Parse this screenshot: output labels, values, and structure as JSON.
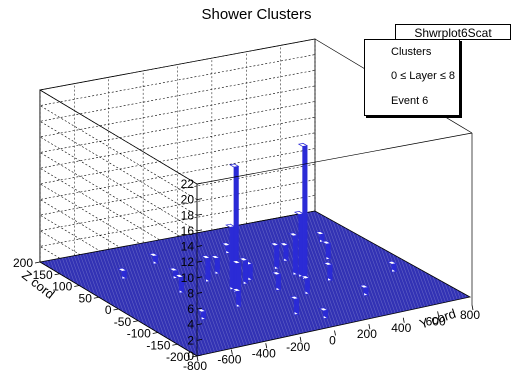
{
  "chart_data": {
    "type": "lego3d",
    "title": "Shower Clusters",
    "stat_box_name": "Shwrplot6Scat",
    "legend": [
      "Clusters",
      "0 ≤ Layer ≤ 8",
      "Event 6"
    ],
    "xlabel": "Y cord",
    "ylabel": "Z cord",
    "zaxis": {
      "ticks": [
        0,
        2,
        4,
        6,
        8,
        10,
        12,
        14,
        16,
        18,
        20,
        22
      ],
      "range": [
        0,
        22
      ]
    },
    "xaxis": {
      "ticks": [
        -800,
        -600,
        -400,
        -200,
        0,
        200,
        400,
        600,
        800
      ],
      "range": [
        -800,
        800
      ]
    },
    "yaxis": {
      "ticks": [
        -200,
        -150,
        -100,
        -50,
        0,
        50,
        100,
        150,
        200
      ],
      "range": [
        -200,
        200
      ]
    },
    "colors": {
      "bar_top": "#ffffff",
      "bar_side": "#2b2bd6",
      "floor": "#3232b4",
      "axis": "#000000",
      "grid": "#000000"
    },
    "bins": [
      {
        "x": -150,
        "y": -10,
        "z": 16
      },
      {
        "x": -150,
        "y": 0,
        "z": 8
      },
      {
        "x": -160,
        "y": -20,
        "z": 4
      },
      {
        "x": 250,
        "y": -10,
        "z": 17
      },
      {
        "x": 250,
        "y": 0,
        "z": 8
      },
      {
        "x": 240,
        "y": 10,
        "z": 5
      },
      {
        "x": -200,
        "y": 40,
        "z": 3
      },
      {
        "x": -100,
        "y": 60,
        "z": 2
      },
      {
        "x": -250,
        "y": -60,
        "z": 2
      },
      {
        "x": 200,
        "y": 40,
        "z": 3
      },
      {
        "x": 300,
        "y": 60,
        "z": 2
      },
      {
        "x": 150,
        "y": -60,
        "z": 2
      },
      {
        "x": -400,
        "y": 20,
        "z": 2
      },
      {
        "x": -500,
        "y": -80,
        "z": 1
      },
      {
        "x": -550,
        "y": 100,
        "z": 1
      },
      {
        "x": 500,
        "y": 40,
        "z": 2
      },
      {
        "x": 600,
        "y": 100,
        "z": 1
      },
      {
        "x": -50,
        "y": -120,
        "z": 2
      },
      {
        "x": 50,
        "y": -150,
        "z": 1
      },
      {
        "x": 100,
        "y": 120,
        "z": 1
      },
      {
        "x": -300,
        "y": 130,
        "z": 1
      },
      {
        "x": 400,
        "y": -100,
        "z": 1
      },
      {
        "x": 0,
        "y": 20,
        "z": 2
      },
      {
        "x": 50,
        "y": -30,
        "z": 2
      },
      {
        "x": -50,
        "y": 10,
        "z": 3
      },
      {
        "x": 350,
        "y": -30,
        "z": 2
      },
      {
        "x": -320,
        "y": 70,
        "z": 1
      },
      {
        "x": 700,
        "y": -40,
        "z": 1
      }
    ]
  }
}
